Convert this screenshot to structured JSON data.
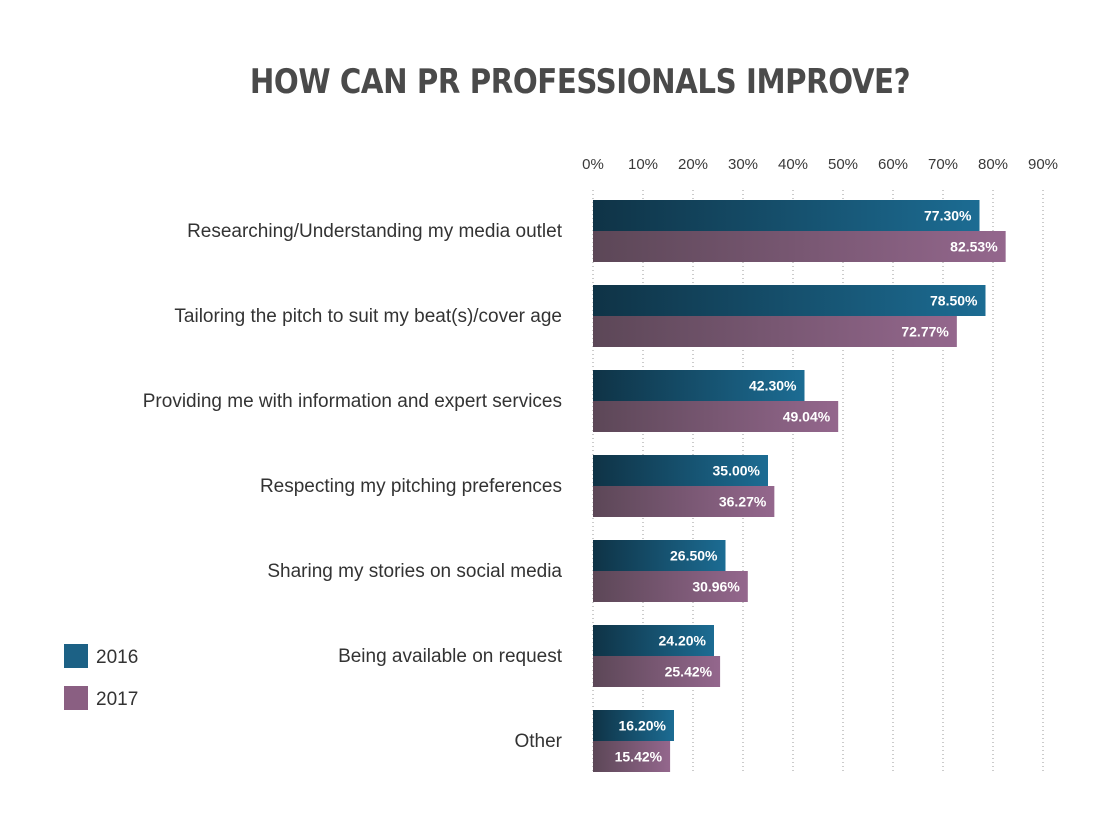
{
  "chart_data": {
    "type": "bar",
    "orientation": "horizontal",
    "title": "HOW CAN PR PROFESSIONALS IMPROVE?",
    "categories": [
      "Researching/Understanding my media outlet",
      "Tailoring the pitch to suit my beat(s)/cover age",
      "Providing me with information and expert services",
      "Respecting my pitching preferences",
      "Sharing my stories on social media",
      "Being available on request",
      "Other"
    ],
    "series": [
      {
        "name": "2016",
        "color": "#1c6185",
        "values": [
          77.3,
          78.5,
          42.3,
          35.0,
          26.5,
          24.2,
          16.2
        ],
        "labels": [
          "77.30%",
          "78.50%",
          "42.30%",
          "35.00%",
          "26.50%",
          "24.20%",
          "16.20%"
        ]
      },
      {
        "name": "2017",
        "color": "#8a5f82",
        "values": [
          82.53,
          72.77,
          49.04,
          36.27,
          30.96,
          25.42,
          15.42
        ],
        "labels": [
          "82.53%",
          "72.77%",
          "49.04%",
          "36.27%",
          "30.96%",
          "25.42%",
          "15.42%"
        ]
      }
    ],
    "xlim": [
      0,
      90
    ],
    "ticks": [
      0,
      10,
      20,
      30,
      40,
      50,
      60,
      70,
      80,
      90
    ],
    "tick_labels": [
      "0%",
      "10%",
      "20%",
      "30%",
      "40%",
      "50%",
      "60%",
      "70%",
      "80%",
      "90%"
    ],
    "axis_position": "top",
    "grid": true,
    "legend_position": "bottom-left"
  }
}
